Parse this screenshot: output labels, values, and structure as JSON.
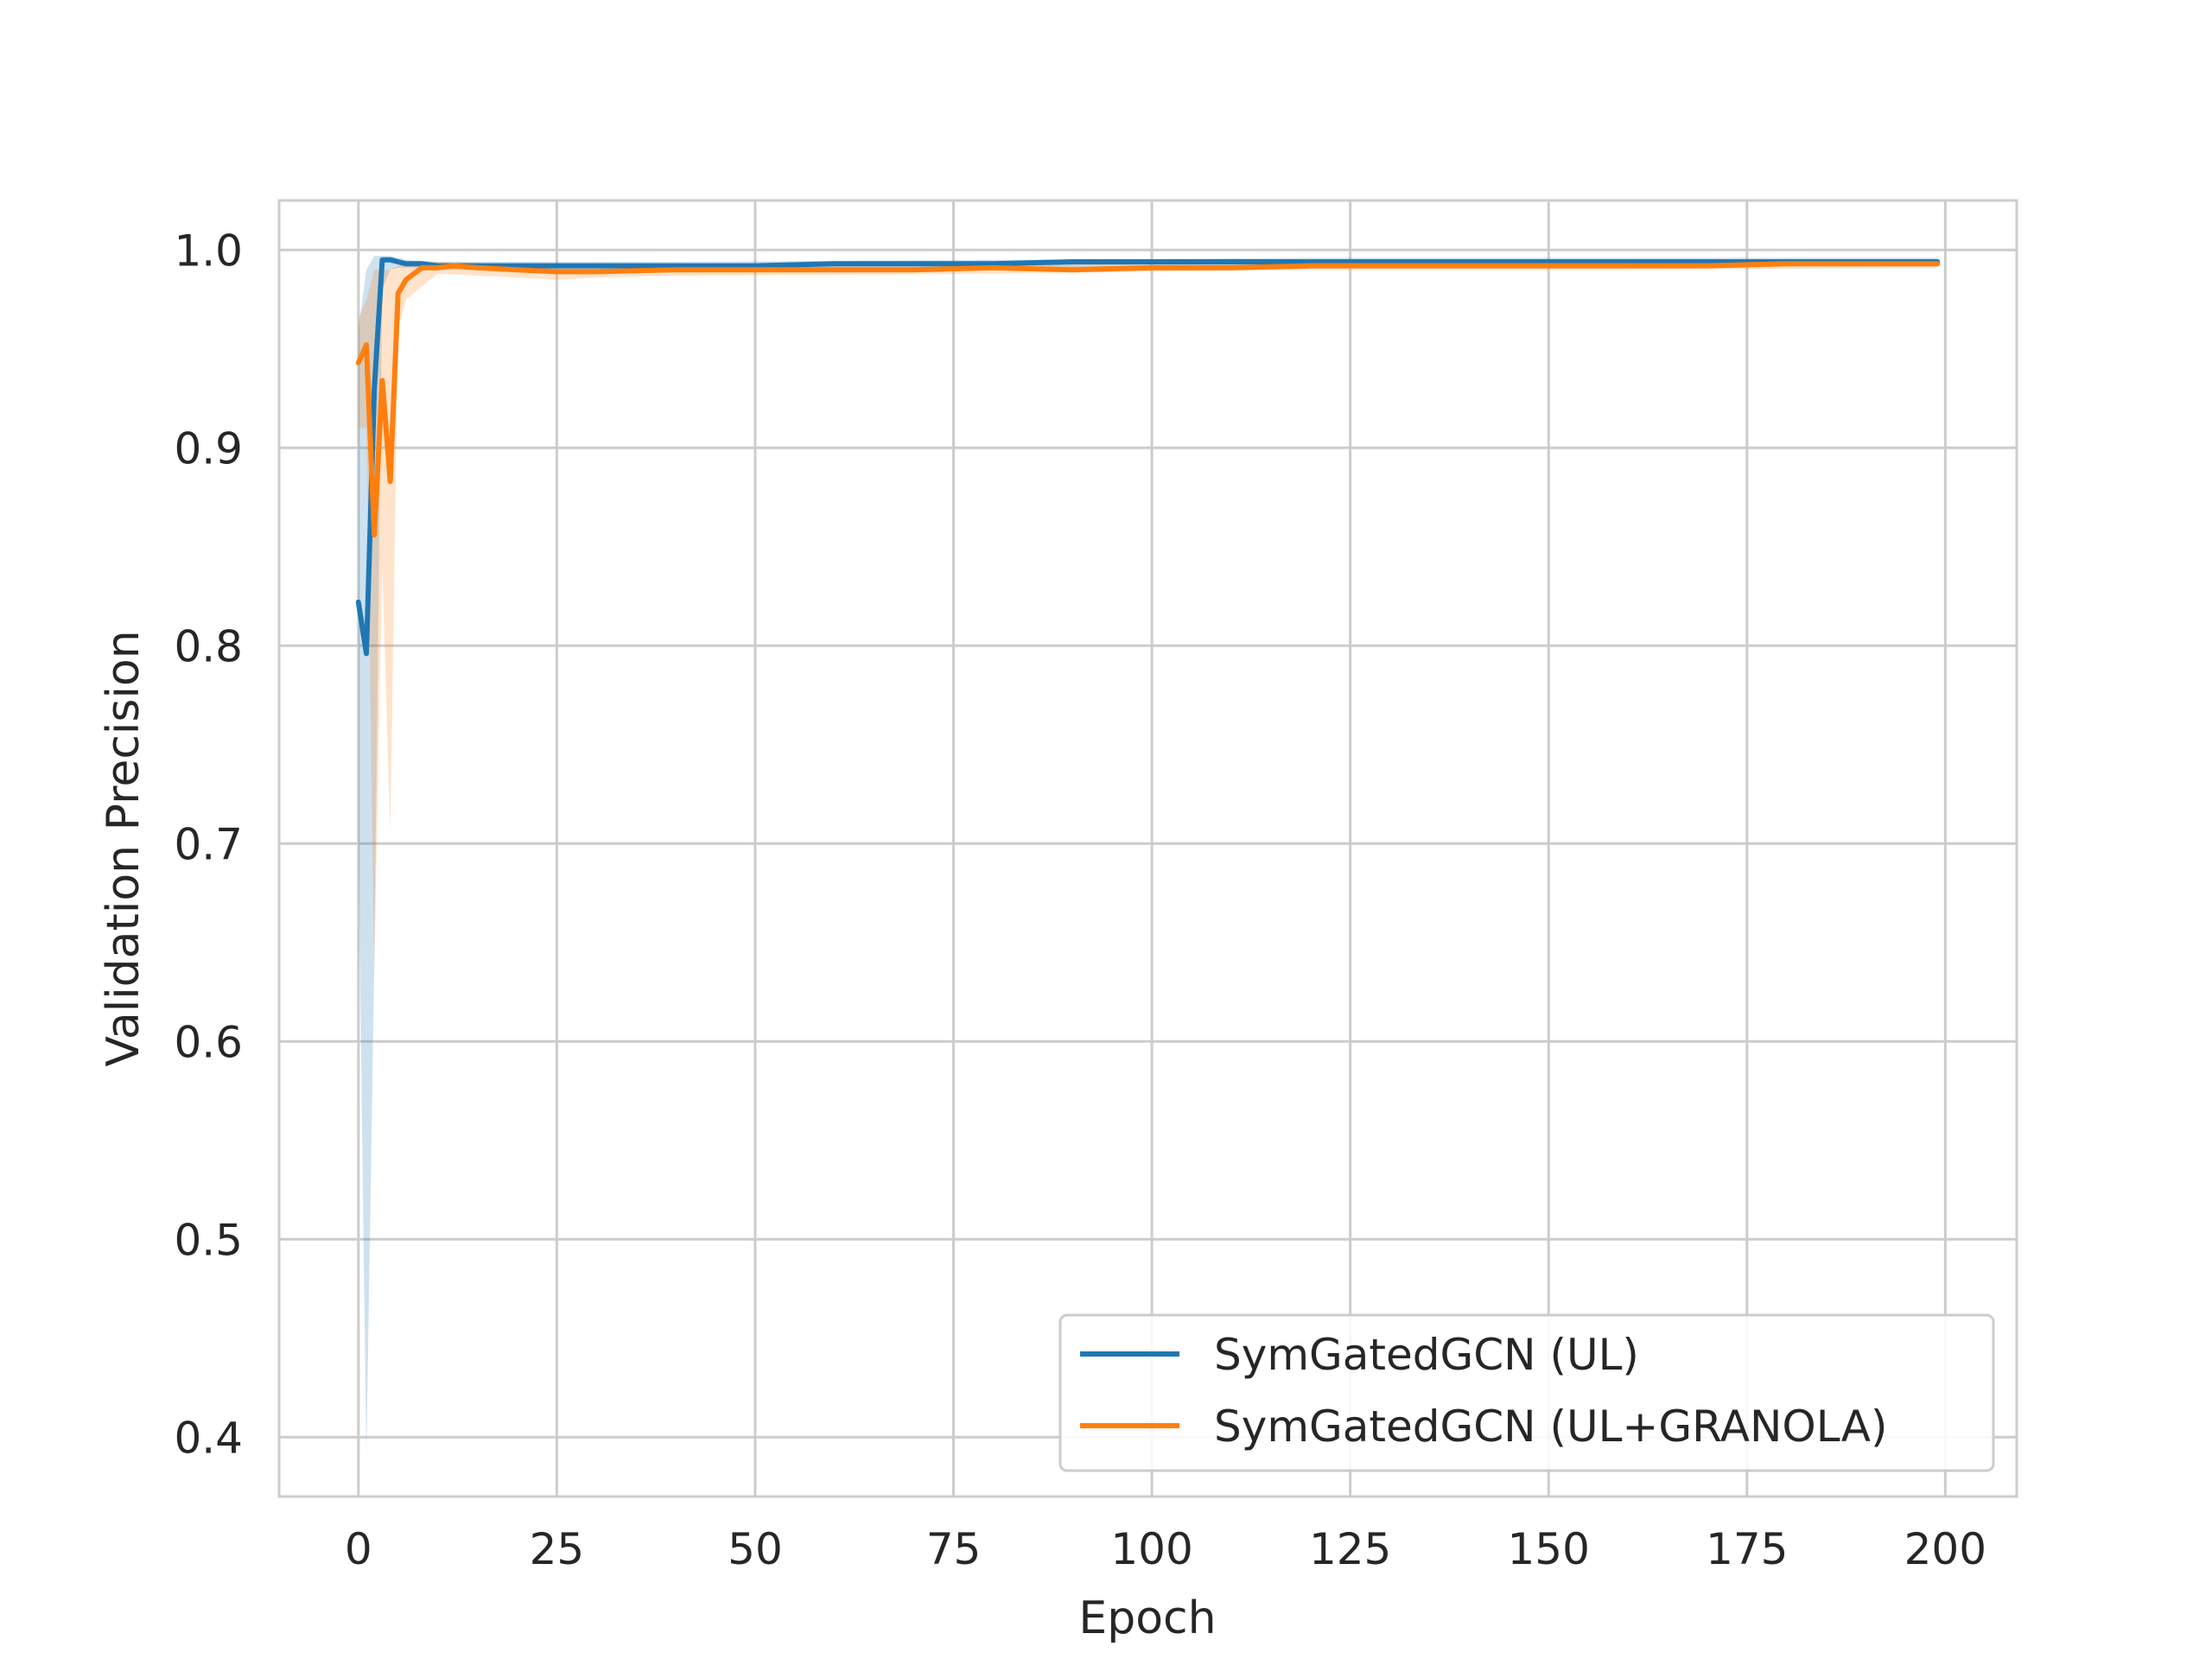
{
  "chart_data": {
    "type": "line",
    "xlabel": "Epoch",
    "ylabel": "Validation Precision",
    "xlim": [
      -10,
      209
    ],
    "ylim": [
      0.37,
      1.025
    ],
    "x_ticks": [
      0,
      25,
      50,
      75,
      100,
      125,
      150,
      175,
      200
    ],
    "y_ticks": [
      0.4,
      0.5,
      0.6,
      0.7,
      0.8,
      0.9,
      1.0
    ],
    "y_tick_labels": [
      "0.4",
      "0.5",
      "0.6",
      "0.7",
      "0.8",
      "0.9",
      "1.0"
    ],
    "grid": true,
    "legend_position": "lower-right",
    "series": [
      {
        "name": "SymGatedGCN (UL)",
        "color": "#1f77b4",
        "x": [
          0,
          1,
          2,
          3,
          4,
          5,
          6,
          8,
          10,
          15,
          20,
          25,
          30,
          40,
          50,
          60,
          70,
          80,
          90,
          100,
          110,
          120,
          130,
          140,
          150,
          160,
          170,
          180,
          190,
          199
        ],
        "y": [
          0.822,
          0.796,
          0.93,
          0.995,
          0.995,
          0.994,
          0.993,
          0.993,
          0.992,
          0.992,
          0.992,
          0.992,
          0.992,
          0.992,
          0.992,
          0.993,
          0.993,
          0.993,
          0.994,
          0.994,
          0.994,
          0.994,
          0.994,
          0.994,
          0.994,
          0.994,
          0.994,
          0.994,
          0.994,
          0.994
        ],
        "band_x": [
          0,
          1,
          2,
          3,
          4,
          5,
          6,
          10,
          20,
          40,
          80,
          120,
          160,
          199
        ],
        "band_lower": [
          0.7,
          0.39,
          0.64,
          0.98,
          0.99,
          0.991,
          0.991,
          0.99,
          0.99,
          0.99,
          0.991,
          0.992,
          0.992,
          0.992
        ],
        "band_upper": [
          0.96,
          0.99,
          0.997,
          0.997,
          0.997,
          0.996,
          0.995,
          0.994,
          0.994,
          0.994,
          0.995,
          0.996,
          0.996,
          0.996
        ]
      },
      {
        "name": "SymGatedGCN (UL+GRANOLA)",
        "color": "#ff7f0e",
        "x": [
          0,
          1,
          2,
          3,
          4,
          5,
          6,
          8,
          10,
          12,
          15,
          20,
          25,
          30,
          40,
          50,
          60,
          70,
          80,
          90,
          100,
          110,
          120,
          130,
          140,
          150,
          160,
          170,
          180,
          190,
          199
        ],
        "y": [
          0.943,
          0.952,
          0.856,
          0.934,
          0.883,
          0.978,
          0.985,
          0.991,
          0.991,
          0.992,
          0.991,
          0.99,
          0.989,
          0.989,
          0.99,
          0.99,
          0.99,
          0.99,
          0.991,
          0.99,
          0.991,
          0.991,
          0.992,
          0.992,
          0.992,
          0.992,
          0.992,
          0.992,
          0.993,
          0.993,
          0.993
        ],
        "band_x": [
          0,
          1,
          2,
          3,
          4,
          5,
          6,
          10,
          20,
          25,
          30,
          40,
          80,
          120,
          160,
          199
        ],
        "band_lower": [
          0.91,
          0.91,
          0.636,
          0.84,
          0.706,
          0.96,
          0.975,
          0.988,
          0.986,
          0.985,
          0.986,
          0.987,
          0.988,
          0.99,
          0.99,
          0.991
        ],
        "band_upper": [
          0.965,
          0.975,
          0.99,
          0.99,
          0.99,
          0.992,
          0.993,
          0.994,
          0.993,
          0.992,
          0.992,
          0.992,
          0.993,
          0.994,
          0.994,
          0.995
        ]
      }
    ]
  }
}
